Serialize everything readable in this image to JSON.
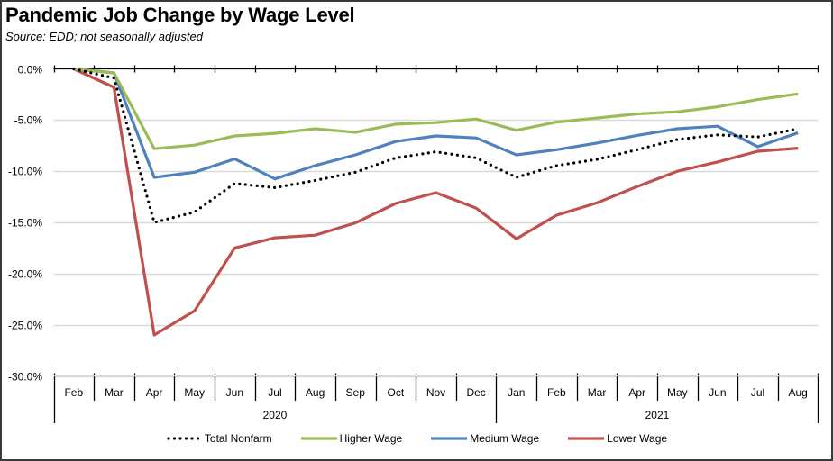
{
  "chart_data": {
    "type": "line",
    "title": "Pandemic Job Change by Wage Level",
    "subtitle": "Source:  EDD; not seasonally adjusted",
    "xlabel": "",
    "ylabel": "",
    "ylim": [
      -30,
      0
    ],
    "yticks": [
      0,
      -5,
      -10,
      -15,
      -20,
      -25,
      -30
    ],
    "ytick_labels": [
      "0.0%",
      "-5.0%",
      "-10.0%",
      "-15.0%",
      "-20.0%",
      "-25.0%",
      "-30.0%"
    ],
    "grid": "horizontal",
    "legend_position": "bottom",
    "categories": [
      "Feb",
      "Mar",
      "Apr",
      "May",
      "Jun",
      "Jul",
      "Aug",
      "Sep",
      "Oct",
      "Nov",
      "Dec",
      "Jan",
      "Feb",
      "Mar",
      "Apr",
      "May",
      "Jun",
      "Jul",
      "Aug"
    ],
    "year_groups": [
      {
        "label": "2020",
        "count": 11
      },
      {
        "label": "2021",
        "count": 8
      }
    ],
    "series": [
      {
        "name": "Total Nonfarm",
        "color": "#000000",
        "style": "dotted",
        "values": [
          0.0,
          -0.9,
          -15.0,
          -14.0,
          -11.2,
          -11.6,
          -10.9,
          -10.1,
          -8.7,
          -8.1,
          -8.7,
          -10.6,
          -9.45,
          -8.85,
          -7.9,
          -6.9,
          -6.45,
          -6.65,
          -5.85
        ]
      },
      {
        "name": "Higher Wage",
        "color": "#9BBB59",
        "style": "solid",
        "values": [
          0.0,
          -0.4,
          -7.8,
          -7.45,
          -6.55,
          -6.3,
          -5.85,
          -6.2,
          -5.4,
          -5.25,
          -4.9,
          -6.0,
          -5.2,
          -4.8,
          -4.4,
          -4.2,
          -3.7,
          -3.0,
          -2.45
        ]
      },
      {
        "name": "Medium Wage",
        "color": "#4F81BD",
        "style": "solid",
        "values": [
          0.0,
          -0.4,
          -10.6,
          -10.1,
          -8.8,
          -10.75,
          -9.45,
          -8.4,
          -7.1,
          -6.55,
          -6.75,
          -8.4,
          -7.9,
          -7.25,
          -6.5,
          -5.85,
          -5.6,
          -7.6,
          -6.25
        ]
      },
      {
        "name": "Lower Wage",
        "color": "#C0504D",
        "style": "solid",
        "values": [
          0.0,
          -1.8,
          -26.0,
          -23.65,
          -17.5,
          -16.5,
          -16.25,
          -15.05,
          -13.15,
          -12.1,
          -13.6,
          -16.6,
          -14.3,
          -13.1,
          -11.5,
          -10.0,
          -9.1,
          -8.05,
          -7.75
        ]
      }
    ]
  }
}
